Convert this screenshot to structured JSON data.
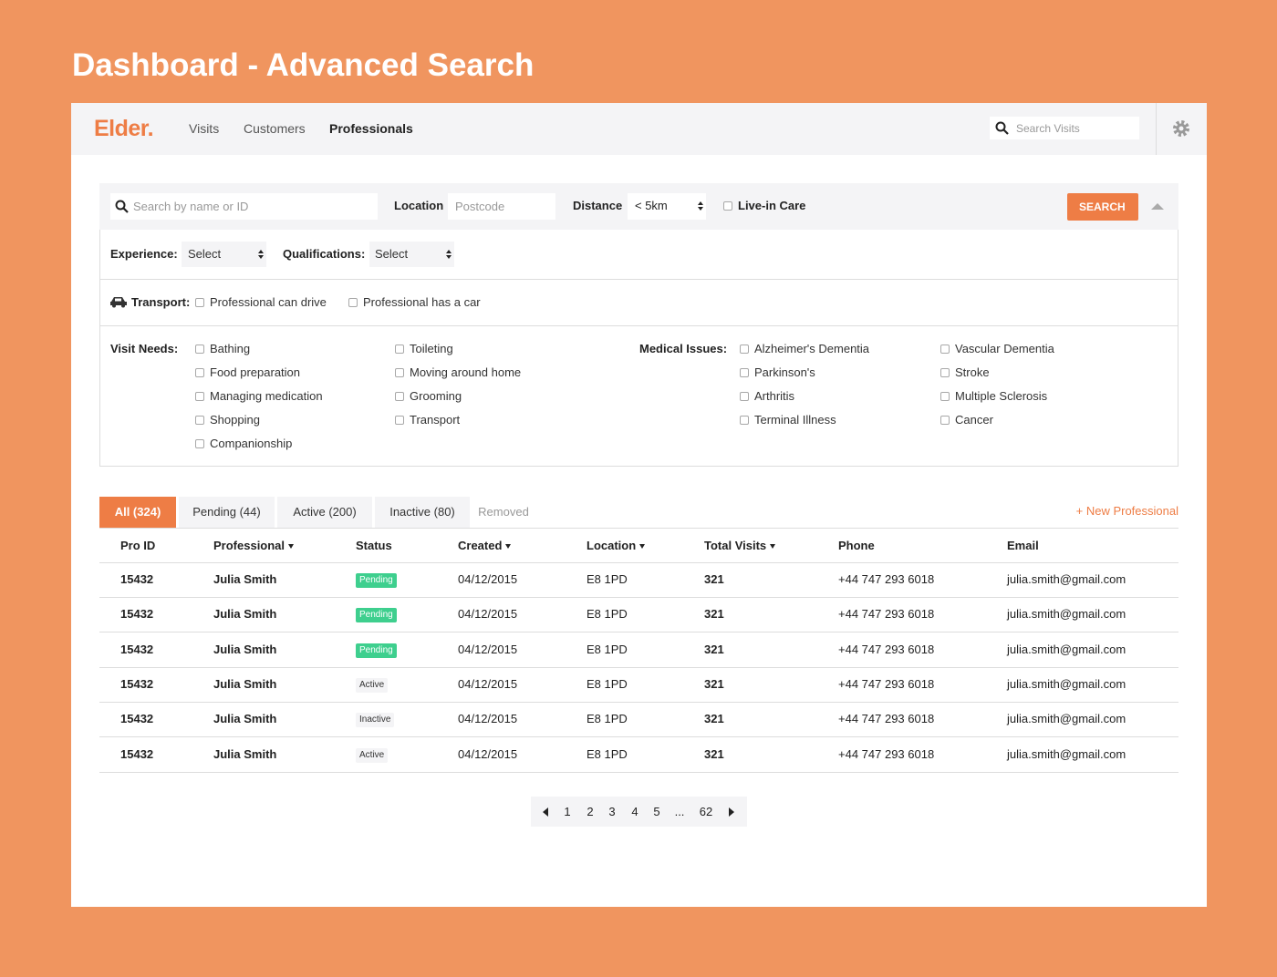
{
  "page_title": "Dashboard - Advanced Search",
  "nav": {
    "logo": "Elder.",
    "links": [
      "Visits",
      "Customers",
      "Professionals"
    ],
    "search_placeholder": "Search Visits"
  },
  "filters": {
    "search_placeholder": "Search by name or ID",
    "location_label": "Location",
    "location_placeholder": "Postcode",
    "distance_label": "Distance",
    "distance_value": "< 5km",
    "live_in_label": "Live-in Care",
    "search_button": "SEARCH",
    "experience_label": "Experience:",
    "experience_value": "Select",
    "qualifications_label": "Qualifications:",
    "qualifications_value": "Select",
    "transport_label": "Transport:",
    "transport_options": [
      "Professional can drive",
      "Professional has a car"
    ],
    "visit_needs_label": "Visit Needs:",
    "visit_needs": [
      "Bathing",
      "Food preparation",
      "Managing medication",
      "Shopping",
      "Companionship",
      "Toileting",
      "Moving around home",
      "Grooming",
      "Transport"
    ],
    "medical_label": "Medical Issues:",
    "medical_issues": [
      "Alzheimer's Dementia",
      "Parkinson's",
      "Arthritis",
      "Terminal Illness",
      "Vascular Dementia",
      "Stroke",
      "Multiple Sclerosis",
      "Cancer"
    ]
  },
  "tabs": [
    "All (324)",
    "Pending (44)",
    "Active (200)",
    "Inactive (80)",
    "Removed"
  ],
  "new_button": "+ New Professional",
  "table": {
    "headers": [
      "Pro ID",
      "Professional",
      "Status",
      "Created",
      "Location",
      "Total Visits",
      "Phone",
      "Email"
    ],
    "rows": [
      [
        "15432",
        "Julia Smith",
        "Pending",
        "04/12/2015",
        "E8 1PD",
        "321",
        "+44 747 293 6018",
        "julia.smith@gmail.com"
      ],
      [
        "15432",
        "Julia Smith",
        "Pending",
        "04/12/2015",
        "E8 1PD",
        "321",
        "+44 747 293 6018",
        "julia.smith@gmail.com"
      ],
      [
        "15432",
        "Julia Smith",
        "Pending",
        "04/12/2015",
        "E8 1PD",
        "321",
        "+44 747 293 6018",
        "julia.smith@gmail.com"
      ],
      [
        "15432",
        "Julia Smith",
        "Active",
        "04/12/2015",
        "E8 1PD",
        "321",
        "+44 747 293 6018",
        "julia.smith@gmail.com"
      ],
      [
        "15432",
        "Julia Smith",
        "Inactive",
        "04/12/2015",
        "E8 1PD",
        "321",
        "+44 747 293 6018",
        "julia.smith@gmail.com"
      ],
      [
        "15432",
        "Julia Smith",
        "Active",
        "04/12/2015",
        "E8 1PD",
        "321",
        "+44 747 293 6018",
        "julia.smith@gmail.com"
      ]
    ]
  },
  "pagination": [
    "1",
    "2",
    "3",
    "4",
    "5",
    "...",
    "62"
  ]
}
